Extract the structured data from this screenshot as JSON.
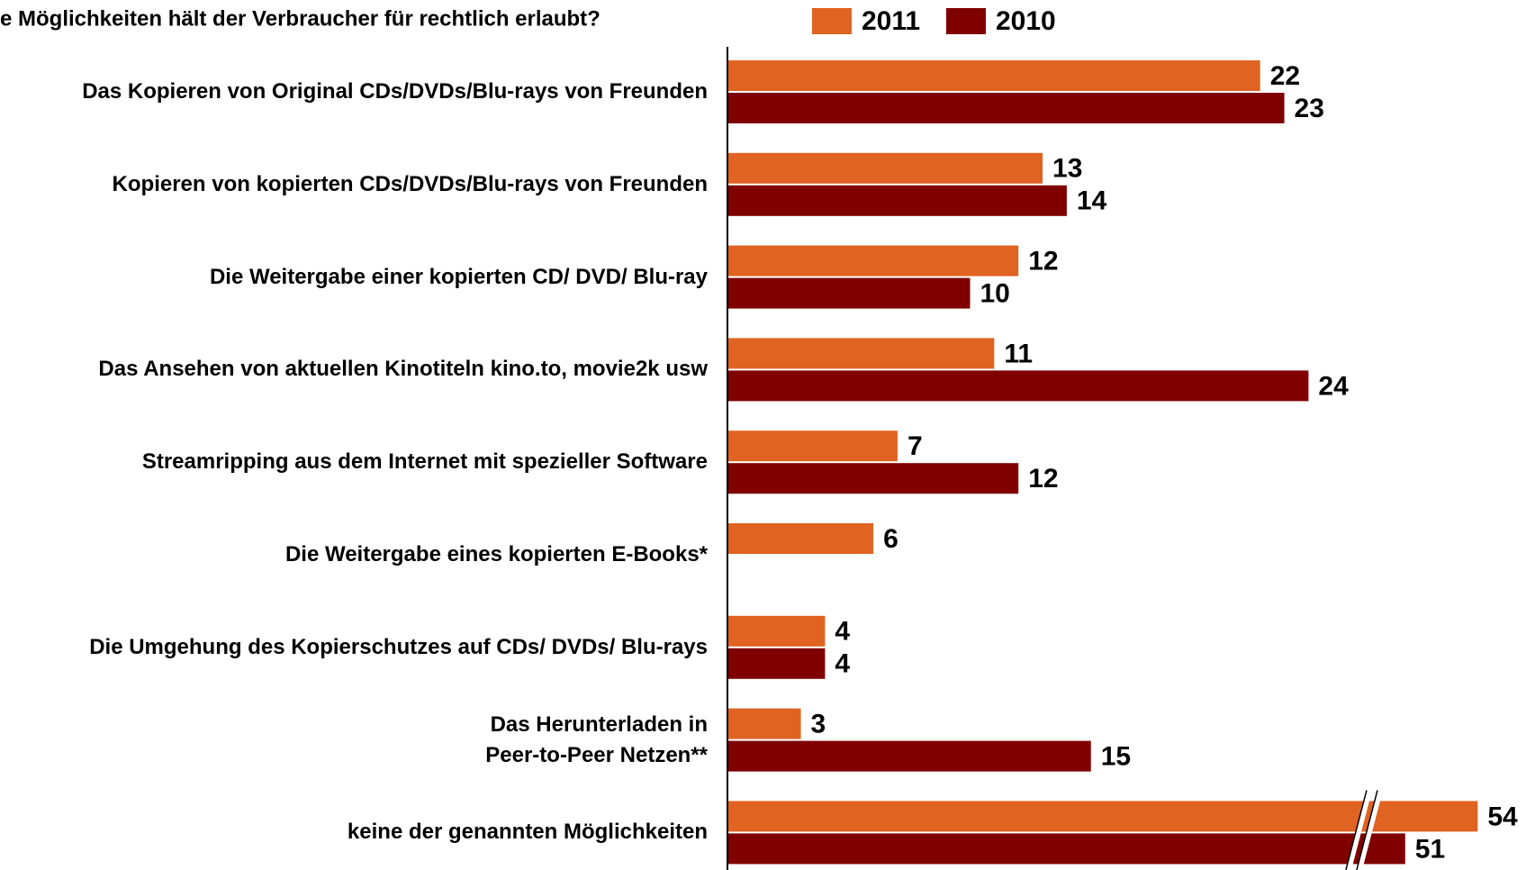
{
  "chart_data": {
    "type": "hbar",
    "title": "e Möglichkeiten hält der Verbraucher für rechtlich erlaubt?",
    "categories": [
      "Das Kopieren von Original CDs/DVDs/Blu-rays von Freunden",
      "Kopieren von kopierten CDs/DVDs/Blu-rays von Freunden",
      "Die Weitergabe einer kopierten CD/ DVD/ Blu-ray",
      "Das Ansehen von aktuellen Kinotiteln kino.to, movie2k usw",
      "Streamripping aus dem Internet mit spezieller Software",
      "Die Weitergabe eines kopierten E-Books*",
      "Die Umgehung des Kopierschutzes auf CDs/ DVDs/ Blu-rays",
      "Das Herunterladen in \nPeer-to-Peer Netzen**",
      "keine der genannten Möglichkeiten"
    ],
    "series": [
      {
        "name": "2011",
        "color": "#e06322",
        "values": [
          22,
          13,
          12,
          11,
          7,
          6,
          4,
          3,
          54
        ]
      },
      {
        "name": "2010",
        "color": "#800000",
        "values": [
          23,
          14,
          10,
          24,
          12,
          null,
          4,
          15,
          51
        ]
      }
    ],
    "axis_break": true
  }
}
